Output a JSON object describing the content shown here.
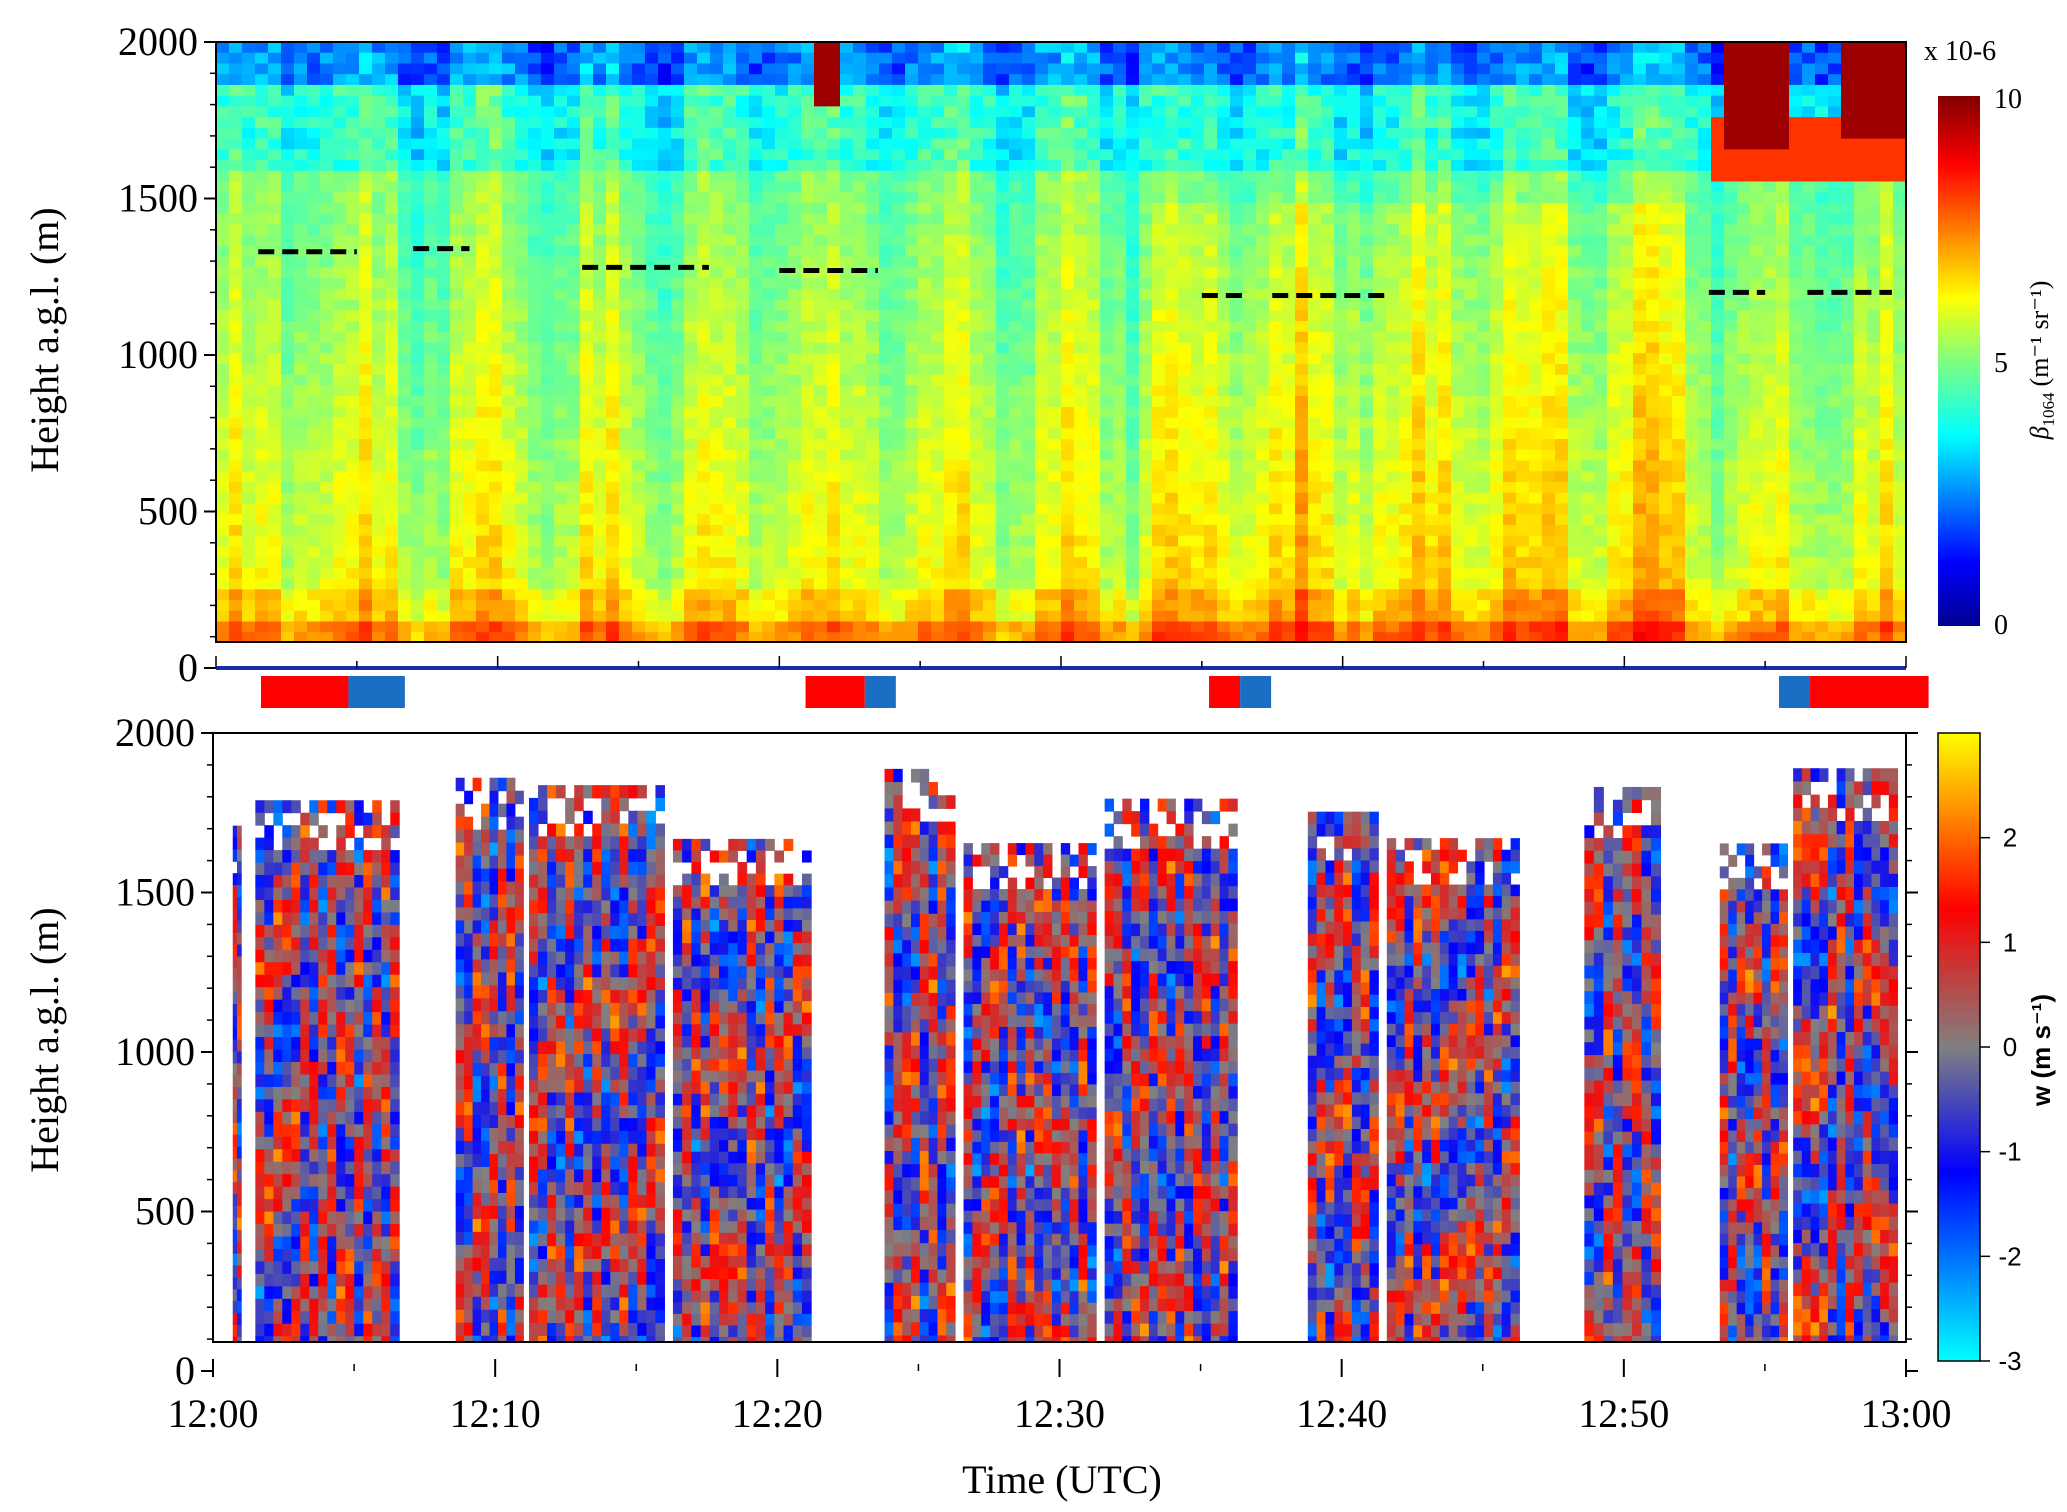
{
  "chart_data": [
    {
      "type": "heatmap",
      "panel": "top",
      "ylabel": "Height a.g.l. (m)",
      "ylim": [
        0,
        2000
      ],
      "y_ticks": [
        "0",
        "500",
        "1000",
        "1500",
        "2000"
      ],
      "xlim": [
        "12:00",
        "13:00"
      ],
      "colorbar": {
        "label_symbol": "β",
        "label_subscript": "1064",
        "label_units_html": "(m⁻¹ sr⁻¹)",
        "label": "β1064 (m-1 sr-1)",
        "scale_note": "x 10-6",
        "range": [
          0,
          10
        ],
        "ticks": [
          "0",
          "5",
          "10"
        ],
        "colormap": "jet"
      },
      "bl_height_dashes": [
        {
          "start": "12:01.5",
          "end": "12:05",
          "height": 1330
        },
        {
          "start": "12:07",
          "end": "12:09",
          "height": 1340
        },
        {
          "start": "12:13",
          "end": "12:17.5",
          "height": 1280
        },
        {
          "start": "12:20",
          "end": "12:23.5",
          "height": 1270
        },
        {
          "start": "12:35",
          "end": "12:36.5",
          "height": 1190
        },
        {
          "start": "12:37.5",
          "end": "12:41.5",
          "height": 1190
        },
        {
          "start": "12:53",
          "end": "12:55",
          "height": 1200
        },
        {
          "start": "12:56.5",
          "end": "12:59.5",
          "height": 1200
        }
      ]
    },
    {
      "type": "heatmap",
      "panel": "bottom",
      "xlabel": "Time (UTC)",
      "ylabel": "Height a.g.l. (m)",
      "ylim": [
        0,
        2000
      ],
      "y_ticks": [
        "0",
        "500",
        "1000",
        "1500",
        "2000"
      ],
      "x_ticks": [
        "12:00",
        "12:10",
        "12:20",
        "12:30",
        "12:40",
        "12:50",
        "13:00"
      ],
      "colorbar": {
        "label": "w (m s-1)",
        "label_html": "w (m s⁻¹)",
        "range": [
          -3,
          3
        ],
        "ticks": [
          "-3",
          "-2",
          "-1",
          "0",
          "1",
          "2"
        ],
        "colormap": "cyan-blue-gray-red-yellow"
      },
      "data_blocks": [
        {
          "start": "12:00.7",
          "end": "12:01.0"
        },
        {
          "start": "12:01.5",
          "end": "12:06.6"
        },
        {
          "start": "12:08.6",
          "end": "12:11.0"
        },
        {
          "start": "12:11.2",
          "end": "12:16.0"
        },
        {
          "start": "12:16.3",
          "end": "12:21.2"
        },
        {
          "start": "12:23.8",
          "end": "12:26.3"
        },
        {
          "start": "12:26.6",
          "end": "12:31.3"
        },
        {
          "start": "12:31.6",
          "end": "12:36.3"
        },
        {
          "start": "12:38.8",
          "end": "12:41.3"
        },
        {
          "start": "12:41.6",
          "end": "12:46.3"
        },
        {
          "start": "12:48.6",
          "end": "12:51.3"
        },
        {
          "start": "12:53.4",
          "end": "12:55.8"
        },
        {
          "start": "12:56.0",
          "end": "12:59.7"
        }
      ]
    }
  ],
  "period_indicators": [
    {
      "color": "#ff0000",
      "start": "12:01.7",
      "end": "12:04.8"
    },
    {
      "color": "#1a6fc4",
      "start": "12:04.8",
      "end": "12:06.8"
    },
    {
      "color": "#ff0000",
      "start": "12:21.0",
      "end": "12:23.1"
    },
    {
      "color": "#1a6fc4",
      "start": "12:23.1",
      "end": "12:24.2"
    },
    {
      "color": "#ff0000",
      "start": "12:35.3",
      "end": "12:36.4"
    },
    {
      "color": "#1a6fc4",
      "start": "12:36.4",
      "end": "12:37.5"
    },
    {
      "color": "#1a6fc4",
      "start": "12:55.5",
      "end": "12:56.6"
    },
    {
      "color": "#ff0000",
      "start": "12:56.6",
      "end": "13:00.8"
    }
  ]
}
